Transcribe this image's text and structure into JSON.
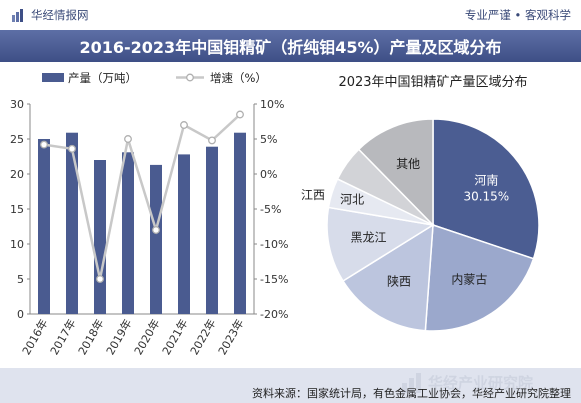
{
  "header": {
    "brand": "华经情报网",
    "slogan": "专业严谨 • 客观科学",
    "title": "2016-2023年中国钼精矿（折纯钼45%）产量及区域分布"
  },
  "footer": {
    "source": "资料来源：国家统计局，有色金属工业协会，华经产业研究院整理",
    "watermark": "华经产业研究院"
  },
  "colors": {
    "bar": "#4a5b90",
    "line": "#c8c8c8",
    "title_bg": "#4a5b90"
  },
  "chart_data": [
    {
      "type": "bar",
      "categories": [
        "2016年",
        "2017年",
        "2018年",
        "2019年",
        "2020年",
        "2021年",
        "2022年",
        "2023年"
      ],
      "series": [
        {
          "name": "产量（万吨）",
          "type": "bar",
          "axis": "left",
          "values": [
            25.0,
            25.9,
            22.0,
            23.1,
            21.3,
            22.8,
            23.9,
            25.9
          ]
        },
        {
          "name": "增速（%）",
          "type": "line",
          "axis": "right",
          "values": [
            4.2,
            3.6,
            -15.0,
            5.0,
            -8.0,
            7.0,
            4.8,
            8.5
          ]
        }
      ],
      "ylim_left": [
        0,
        30
      ],
      "yticks_left": [
        "0",
        "5",
        "10",
        "15",
        "20",
        "25",
        "30"
      ],
      "ylim_right": [
        -20,
        10
      ],
      "yticks_right": [
        "-20%",
        "-15%",
        "-10%",
        "-5%",
        "0%",
        "5%",
        "10%"
      ],
      "legend_position": "top-left",
      "grid": false
    },
    {
      "type": "pie",
      "title": "2023年中国钼精矿产量区域分布",
      "slices": [
        {
          "label": "河南",
          "value": 30.15,
          "value_label": "30.15%",
          "color": "#4b5d92"
        },
        {
          "label": "内蒙古",
          "value": 21.0,
          "color": "#9ba8cc"
        },
        {
          "label": "陕西",
          "value": 15.0,
          "color": "#bcc5de"
        },
        {
          "label": "黑龙江",
          "value": 11.5,
          "color": "#d7dcea"
        },
        {
          "label": "河北",
          "value": 4.5,
          "color": "#e6e9f1"
        },
        {
          "label": "江西",
          "value": 5.5,
          "color": "#d2d3d7"
        },
        {
          "label": "其他",
          "value": 12.35,
          "color": "#b8b9bd"
        }
      ]
    }
  ]
}
